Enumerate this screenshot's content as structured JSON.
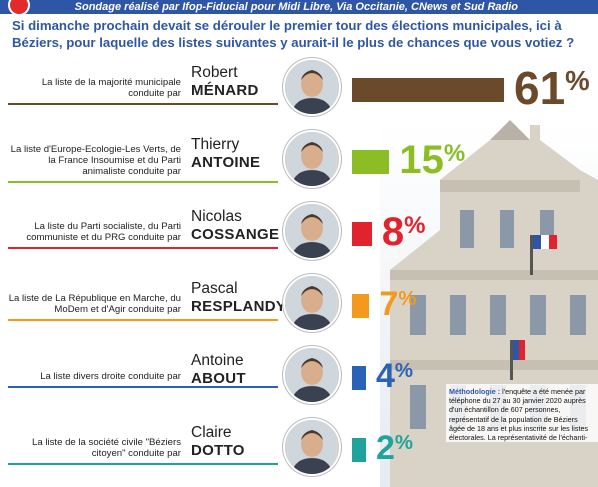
{
  "header": {
    "subtitle": "Sondage réalisé par Ifop-Fiducial pour Midi Libre, Via Occitanie, CNews et Sud Radio",
    "question": "Si dimanche prochain devait se dérouler le premier tour des élections municipales, ici à Béziers, pour laquelle des listes suivantes y aurait-il le plus de chances que vous votiez ?"
  },
  "chart_data": {
    "type": "bar",
    "orientation": "horizontal",
    "categories": [
      "Robert MÉNARD",
      "Thierry ANTOINE",
      "Nicolas COSSANGE",
      "Pascal RESPLANDY",
      "Antoine ABOUT",
      "Claire DOTTO"
    ],
    "values": [
      61,
      15,
      8,
      7,
      4,
      2
    ],
    "unit": "%",
    "xlim": [
      0,
      61
    ],
    "grid": false,
    "legend": "none",
    "rows": [
      {
        "description": "La liste de la majorité municipale conduite par",
        "first_name": "Robert",
        "last_name": "MÉNARD",
        "value": 61,
        "value_label": "61",
        "color": "#6b4a2b"
      },
      {
        "description": "La liste d'Europe-Ecologie-Les Verts, de la France Insoumise et du Parti animaliste conduite par",
        "first_name": "Thierry",
        "last_name": "ANTOINE",
        "value": 15,
        "value_label": "15",
        "color": "#8cbd24"
      },
      {
        "description": "La liste du Parti socialiste, du Parti communiste et du PRG conduite par",
        "first_name": "Nicolas",
        "last_name": "COSSANGE",
        "value": 8,
        "value_label": "8",
        "color": "#e1232d"
      },
      {
        "description": "La liste de La République en Marche, du MoDem et d'Agir conduite par",
        "first_name": "Pascal",
        "last_name": "RESPLANDY",
        "value": 7,
        "value_label": "7",
        "color": "#f39a1e"
      },
      {
        "description": "La liste divers droite conduite par",
        "first_name": "Antoine",
        "last_name": "ABOUT",
        "value": 4,
        "value_label": "4",
        "color": "#2a63b5"
      },
      {
        "description": "La liste de la société civile \"Béziers citoyen\" conduite par",
        "first_name": "Claire",
        "last_name": "DOTTO",
        "value": 2,
        "value_label": "2",
        "color": "#1fa39a"
      }
    ]
  },
  "methodology": {
    "label": "Méthodologie :",
    "text": "l'enquête a été menée par téléphone du 27 au 30 janvier 2020 auprès d'un échantillon de 607 personnes, représentatif de la population de Béziers âgée de 18 ans et plus inscrite sur les listes électorales. La représentativité de l'échanti-"
  }
}
